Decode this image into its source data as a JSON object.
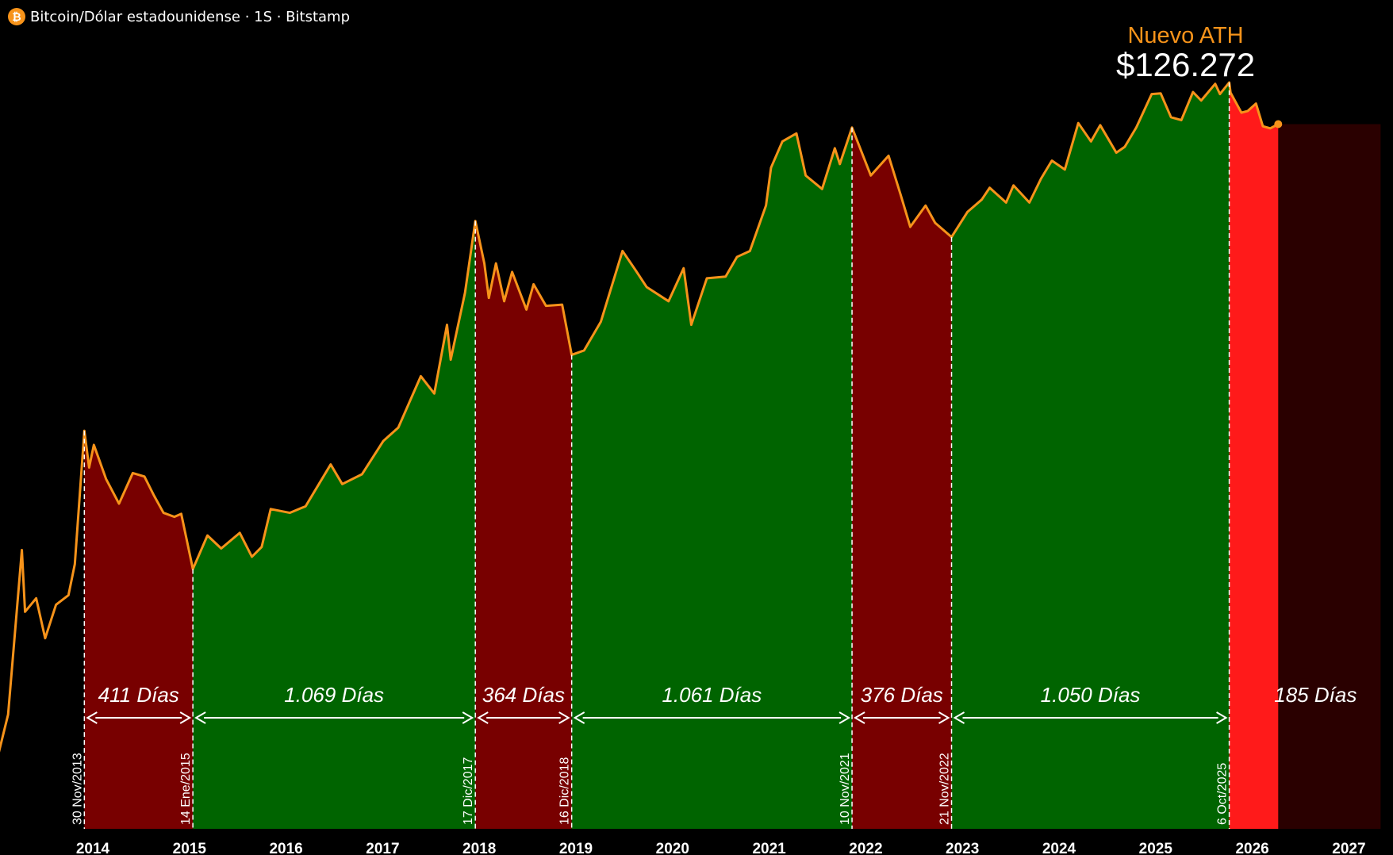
{
  "header": {
    "symbol_icon": "bitcoin-icon",
    "symbol_glyph": "₿",
    "title": "Bitcoin/Dólar estadounidense · 1S · Bitstamp"
  },
  "colors": {
    "background": "#000000",
    "price_line": "#f7931a",
    "bull_fill": "#006400",
    "bear_fill": "#780000",
    "current_bear_fill": "#ff1a1a",
    "projection_fill": "#2a0000",
    "label_text": "#ffffff",
    "ath_label": "#f7931a"
  },
  "chart_data": {
    "type": "area",
    "title": "Bitcoin/Dólar estadounidense · 1S · Bitstamp",
    "xlabel": "",
    "ylabel": "",
    "x_ticks": [
      "2014",
      "2015",
      "2016",
      "2017",
      "2018",
      "2019",
      "2020",
      "2021",
      "2022",
      "2023",
      "2024",
      "2025",
      "2026",
      "2027"
    ],
    "grid": false,
    "y_scale": "log",
    "annotation": {
      "title": "Nuevo ATH",
      "value": "$126.272"
    },
    "cycles": [
      {
        "phase": "bear",
        "start": "30 Nov/2013",
        "end": "14 Ene/2015",
        "duration": "411 Días"
      },
      {
        "phase": "bull",
        "start": "14 Ene/2015",
        "end": "17 Dic/2017",
        "duration": "1.069 Días"
      },
      {
        "phase": "bear",
        "start": "17 Dic/2017",
        "end": "16 Dic/2018",
        "duration": "364 Días"
      },
      {
        "phase": "bull",
        "start": "16 Dic/2018",
        "end": "10 Nov/2021",
        "duration": "1.061 Días"
      },
      {
        "phase": "bear",
        "start": "10 Nov/2021",
        "end": "21 Nov/2022",
        "duration": "376 Días"
      },
      {
        "phase": "bull",
        "start": "21 Nov/2022",
        "end": "6 Oct/2025",
        "duration": "1.050 Días"
      },
      {
        "phase": "bear-current",
        "start": "6 Oct/2025",
        "end": "",
        "duration": "185 Días"
      }
    ],
    "series": [
      {
        "points": [
          [
            "2013-01-01",
            13
          ],
          [
            "2013-02-15",
            25
          ],
          [
            "2013-04-08",
            230
          ],
          [
            "2013-04-20",
            100
          ],
          [
            "2013-06-01",
            120
          ],
          [
            "2013-07-05",
            70
          ],
          [
            "2013-08-15",
            110
          ],
          [
            "2013-10-01",
            125
          ],
          [
            "2013-10-25",
            190
          ],
          [
            "2013-11-30",
            1150
          ],
          [
            "2013-12-18",
            700
          ],
          [
            "2014-01-05",
            950
          ],
          [
            "2014-02-20",
            600
          ],
          [
            "2014-04-10",
            430
          ],
          [
            "2014-06-01",
            650
          ],
          [
            "2014-07-15",
            620
          ],
          [
            "2014-08-20",
            480
          ],
          [
            "2014-09-25",
            380
          ],
          [
            "2014-11-05",
            360
          ],
          [
            "2014-12-01",
            375
          ],
          [
            "2015-01-14",
            178
          ],
          [
            "2015-03-10",
            280
          ],
          [
            "2015-05-01",
            235
          ],
          [
            "2015-07-10",
            290
          ],
          [
            "2015-08-25",
            210
          ],
          [
            "2015-10-01",
            240
          ],
          [
            "2015-11-04",
            400
          ],
          [
            "2016-01-15",
            380
          ],
          [
            "2016-03-15",
            415
          ],
          [
            "2016-06-18",
            730
          ],
          [
            "2016-08-01",
            560
          ],
          [
            "2016-10-15",
            640
          ],
          [
            "2017-01-03",
            1000
          ],
          [
            "2017-03-01",
            1200
          ],
          [
            "2017-05-25",
            2400
          ],
          [
            "2017-07-15",
            1900
          ],
          [
            "2017-09-01",
            4800
          ],
          [
            "2017-09-15",
            3000
          ],
          [
            "2017-11-08",
            7400
          ],
          [
            "2017-12-17",
            19500
          ],
          [
            "2018-01-20",
            11000
          ],
          [
            "2018-02-06",
            6900
          ],
          [
            "2018-03-05",
            11000
          ],
          [
            "2018-04-05",
            6600
          ],
          [
            "2018-05-05",
            9800
          ],
          [
            "2018-06-28",
            5900
          ],
          [
            "2018-07-25",
            8300
          ],
          [
            "2018-09-10",
            6200
          ],
          [
            "2018-11-10",
            6300
          ],
          [
            "2018-12-16",
            3200
          ],
          [
            "2019-02-01",
            3400
          ],
          [
            "2019-04-05",
            5000
          ],
          [
            "2019-06-26",
            13000
          ],
          [
            "2019-08-15",
            10000
          ],
          [
            "2019-09-25",
            8000
          ],
          [
            "2019-12-17",
            6600
          ],
          [
            "2020-02-12",
            10300
          ],
          [
            "2020-03-12",
            4800
          ],
          [
            "2020-05-10",
            9000
          ],
          [
            "2020-07-20",
            9200
          ],
          [
            "2020-09-01",
            12000
          ],
          [
            "2020-10-20",
            13000
          ],
          [
            "2020-12-20",
            24000
          ],
          [
            "2021-01-08",
            40000
          ],
          [
            "2021-02-20",
            57000
          ],
          [
            "2021-04-14",
            63500
          ],
          [
            "2021-05-19",
            36000
          ],
          [
            "2021-07-20",
            30000
          ],
          [
            "2021-09-06",
            52000
          ],
          [
            "2021-09-25",
            42000
          ],
          [
            "2021-11-10",
            68800
          ],
          [
            "2022-01-20",
            36000
          ],
          [
            "2022-03-28",
            47000
          ],
          [
            "2022-05-12",
            28000
          ],
          [
            "2022-06-18",
            18000
          ],
          [
            "2022-08-15",
            24000
          ],
          [
            "2022-09-20",
            19000
          ],
          [
            "2022-11-21",
            15700
          ],
          [
            "2023-01-20",
            22000
          ],
          [
            "2023-03-15",
            26000
          ],
          [
            "2023-04-14",
            30500
          ],
          [
            "2023-06-15",
            25000
          ],
          [
            "2023-07-13",
            31500
          ],
          [
            "2023-09-11",
            25000
          ],
          [
            "2023-10-25",
            34500
          ],
          [
            "2023-12-05",
            44000
          ],
          [
            "2024-01-23",
            39000
          ],
          [
            "2024-03-14",
            73000
          ],
          [
            "2024-05-01",
            57000
          ],
          [
            "2024-06-05",
            71000
          ],
          [
            "2024-08-05",
            49000
          ],
          [
            "2024-09-06",
            53000
          ],
          [
            "2024-10-20",
            69000
          ],
          [
            "2024-12-17",
            108000
          ],
          [
            "2025-01-20",
            109000
          ],
          [
            "2025-02-28",
            79000
          ],
          [
            "2025-04-08",
            76000
          ],
          [
            "2025-05-22",
            111000
          ],
          [
            "2025-06-22",
            99000
          ],
          [
            "2025-08-14",
            124000
          ],
          [
            "2025-09-01",
            108000
          ],
          [
            "2025-10-06",
            126272
          ],
          [
            "2025-10-11",
            110000
          ],
          [
            "2025-11-21",
            84000
          ],
          [
            "2025-12-15",
            86000
          ],
          [
            "2026-01-15",
            95000
          ],
          [
            "2026-02-10",
            70000
          ],
          [
            "2026-03-10",
            68000
          ],
          [
            "2026-04-09",
            72000
          ]
        ]
      }
    ]
  }
}
